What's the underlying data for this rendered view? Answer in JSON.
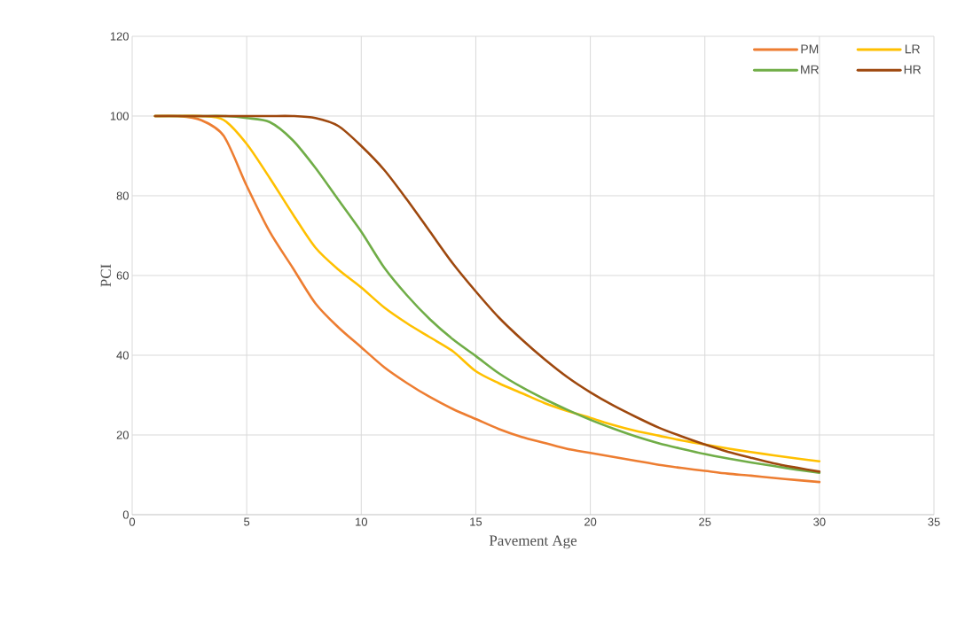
{
  "chart_data": {
    "type": "line",
    "xlabel": "Pavement Age",
    "ylabel": "PCI",
    "x": [
      1,
      2,
      3,
      4,
      5,
      6,
      7,
      8,
      9,
      10,
      11,
      12,
      13,
      14,
      15,
      16,
      17,
      18,
      19,
      20,
      21,
      22,
      23,
      24,
      25,
      26,
      27,
      28,
      29,
      30
    ],
    "xlim": [
      0,
      35
    ],
    "xticks": [
      0,
      5,
      10,
      15,
      20,
      25,
      30,
      35
    ],
    "ylim": [
      0,
      120
    ],
    "yticks": [
      0,
      20,
      40,
      60,
      80,
      100,
      120
    ],
    "grid": true,
    "legend": "top right",
    "marker": "none",
    "line_style": "solid",
    "series": [
      {
        "name": "PM",
        "color": "#ed7d31",
        "values": [
          100,
          100,
          99,
          95,
          82.5,
          71,
          62,
          53,
          47,
          42,
          37,
          33,
          29.5,
          26.5,
          24,
          21.5,
          19.5,
          18,
          16.5,
          15.5,
          14.5,
          13.5,
          12.5,
          11.7,
          11,
          10.3,
          9.8,
          9.2,
          8.7,
          8.2
        ]
      },
      {
        "name": "LR",
        "color": "#ffc000",
        "values": [
          100,
          100,
          100,
          99,
          93,
          84.5,
          75.5,
          67,
          61.5,
          57,
          52,
          48,
          44.5,
          41,
          36,
          33,
          30.5,
          28,
          26,
          24.3,
          22.5,
          21,
          19.8,
          18.6,
          17.6,
          16.6,
          15.7,
          14.9,
          14.1,
          13.4
        ]
      },
      {
        "name": "MR",
        "color": "#70ad47",
        "values": [
          100,
          100,
          100,
          100,
          99.5,
          98.5,
          94,
          87,
          79,
          71,
          62,
          55,
          49,
          44,
          39.8,
          35.5,
          32,
          29,
          26.3,
          23.8,
          21.6,
          19.6,
          17.9,
          16.5,
          15.2,
          14.1,
          13.1,
          12.2,
          11.3,
          10.5
        ]
      },
      {
        "name": "HR",
        "color": "#9e480e",
        "values": [
          100,
          100,
          100,
          100,
          100,
          100,
          100,
          99.5,
          97.5,
          92.5,
          86.5,
          79,
          71,
          63,
          56,
          49.5,
          44,
          39,
          34.5,
          30.7,
          27.4,
          24.5,
          21.8,
          19.6,
          17.6,
          15.8,
          14.3,
          12.9,
          11.8,
          10.8
        ]
      }
    ]
  }
}
